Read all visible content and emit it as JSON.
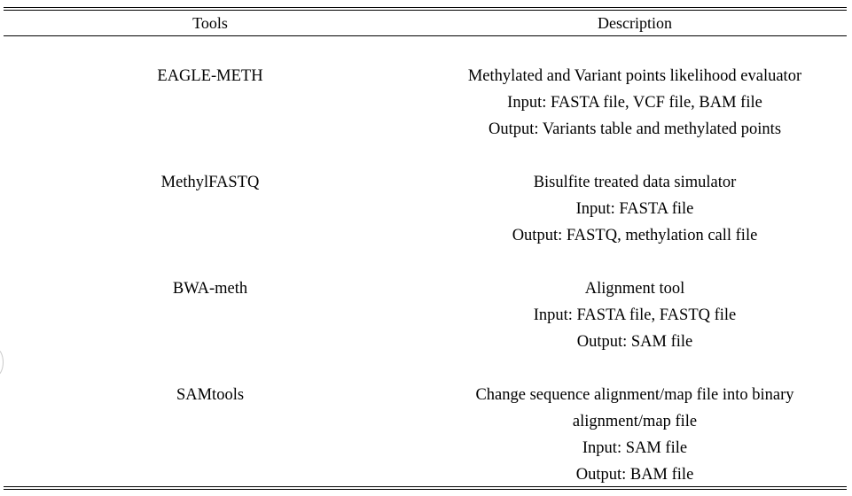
{
  "table": {
    "headers": {
      "tools": "Tools",
      "description": "Description"
    },
    "rows": [
      {
        "tool": "EAGLE-METH",
        "description_lines": [
          "Methylated and Variant points likelihood evaluator",
          "Input: FASTA file, VCF file, BAM file",
          "Output: Variants table and methylated points"
        ]
      },
      {
        "tool": "MethylFASTQ",
        "description_lines": [
          "Bisulfite treated data simulator",
          "Input: FASTA file",
          "Output: FASTQ, methylation call file"
        ]
      },
      {
        "tool": "BWA-meth",
        "description_lines": [
          "Alignment tool",
          "Input: FASTA file, FASTQ file",
          "Output: SAM file"
        ]
      },
      {
        "tool": "SAMtools",
        "description_lines": [
          "Change sequence alignment/map file into binary",
          "alignment/map file",
          "Input: SAM file",
          "Output: BAM file"
        ]
      }
    ]
  }
}
